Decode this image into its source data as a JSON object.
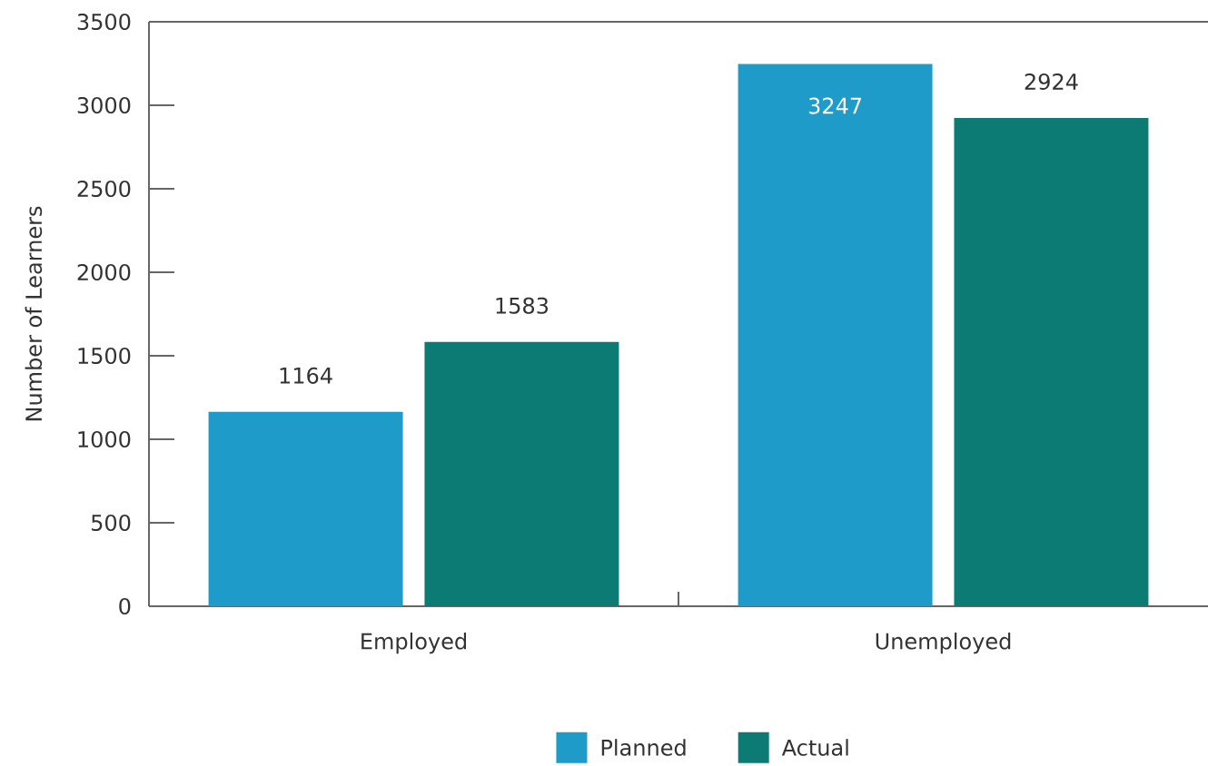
{
  "chart_data": {
    "type": "bar",
    "categories": [
      "Employed",
      "Unemployed"
    ],
    "series": [
      {
        "name": "Planned",
        "color": "#1e9bc8",
        "values": [
          1164,
          3247
        ]
      },
      {
        "name": "Actual",
        "color": "#0c7b74",
        "values": [
          1583,
          2924
        ]
      }
    ],
    "ylabel": "Number of Learners",
    "ylim": [
      0,
      3500
    ],
    "yticks": [
      0,
      500,
      1000,
      1500,
      2000,
      2500,
      3000,
      3500
    ],
    "data_labels": true,
    "legend": "bottom"
  }
}
